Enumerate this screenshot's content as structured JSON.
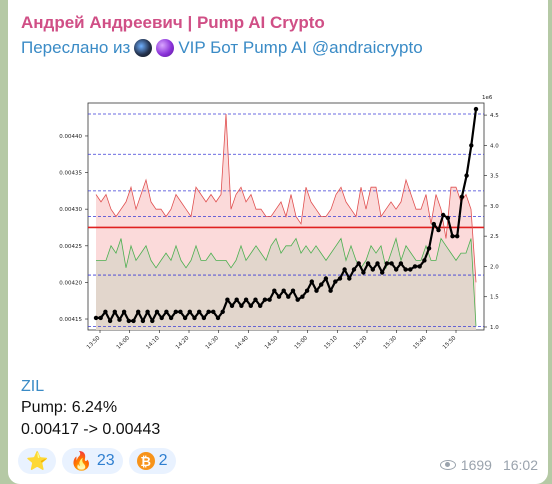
{
  "message": {
    "author": "Андрей Андреевич | Pump AI Crypto",
    "forwarded_prefix": "Переслано из",
    "forwarded_source": "VIP Бот Pump AI @andraicrypto",
    "ticker": "ZIL",
    "pump_line": "Pump: 6.24%",
    "price_line": "0.00417 -> 0.00443",
    "views": "1699",
    "time": "16:02"
  },
  "reactions": [
    {
      "icon": "star-icon",
      "glyph": "⭐",
      "count": ""
    },
    {
      "icon": "fire-icon",
      "glyph": "🔥",
      "count": "23"
    },
    {
      "icon": "bitcoin-icon",
      "glyph": "₿",
      "count": "2"
    }
  ],
  "colors": {
    "author": "#d04f86",
    "link": "#3a8bc6",
    "upper_band": "#e05050",
    "lower_band": "#4caf50",
    "price": "#000000",
    "hline": "#3b3bd6",
    "mid": "#e02020"
  },
  "chart_data": {
    "type": "line",
    "x_ticks": [
      "13:50",
      "14:00",
      "14:10",
      "14:20",
      "14:30",
      "14:40",
      "14:50",
      "15:00",
      "15:10",
      "15:20",
      "15:30",
      "15:40",
      "15:50"
    ],
    "left_ticks": [
      "0.00415",
      "0.00420",
      "0.00425",
      "0.00430",
      "0.00435",
      "0.00440"
    ],
    "left_ylim": [
      0.004135,
      0.004445
    ],
    "right_ticks": [
      "1.0",
      "1.5",
      "2.0",
      "2.5",
      "3.0",
      "3.5",
      "4.0",
      "4.5"
    ],
    "right_ylim": [
      0.95,
      4.7
    ],
    "right_offset_label": "1e6",
    "hlines_left": [
      0.00414,
      0.00421,
      0.004275,
      0.00429,
      0.004325,
      0.004375,
      0.00443
    ],
    "mid_line": 0.004275,
    "upper": [
      0.00432,
      0.00431,
      0.00432,
      0.0043,
      0.00429,
      0.0043,
      0.00431,
      0.00433,
      0.0043,
      0.00432,
      0.00434,
      0.00431,
      0.0043,
      0.0043,
      0.00429,
      0.0043,
      0.00432,
      0.00431,
      0.0043,
      0.00429,
      0.00433,
      0.00432,
      0.00431,
      0.00432,
      0.00431,
      0.00432,
      0.00443,
      0.0043,
      0.00432,
      0.00433,
      0.00431,
      0.00432,
      0.0043,
      0.0043,
      0.00429,
      0.00429,
      0.0043,
      0.00431,
      0.00429,
      0.00432,
      0.00429,
      0.00428,
      0.00433,
      0.00431,
      0.0043,
      0.00429,
      0.00429,
      0.0043,
      0.00432,
      0.00433,
      0.00431,
      0.0043,
      0.00429,
      0.00433,
      0.0043,
      0.00433,
      0.00433,
      0.00429,
      0.0043,
      0.00431,
      0.0043,
      0.00431,
      0.00434,
      0.00432,
      0.0043,
      0.0043,
      0.00432,
      0.00428,
      0.00432,
      0.0043,
      0.00426,
      0.00433,
      0.00433,
      0.00431,
      0.00432,
      0.0043,
      0.0042
    ],
    "lower": [
      0.00423,
      0.00423,
      0.00423,
      0.00425,
      0.00424,
      0.00426,
      0.00422,
      0.00425,
      0.00423,
      0.00424,
      0.00425,
      0.00423,
      0.00422,
      0.00423,
      0.00424,
      0.00423,
      0.00425,
      0.00423,
      0.00422,
      0.00423,
      0.00425,
      0.00423,
      0.00423,
      0.00424,
      0.00423,
      0.00423,
      0.00423,
      0.00422,
      0.00423,
      0.00425,
      0.00423,
      0.00424,
      0.00425,
      0.00424,
      0.00423,
      0.00425,
      0.00426,
      0.00424,
      0.00425,
      0.00425,
      0.00426,
      0.00424,
      0.00425,
      0.00424,
      0.00425,
      0.00424,
      0.00423,
      0.00424,
      0.00425,
      0.00426,
      0.00423,
      0.00425,
      0.00423,
      0.00422,
      0.00423,
      0.00425,
      0.00424,
      0.00425,
      0.00422,
      0.00424,
      0.00426,
      0.00423,
      0.00425,
      0.00424,
      0.00423,
      0.00423,
      0.00425,
      0.00423,
      0.00423,
      0.00426,
      0.00425,
      0.00424,
      0.00423,
      0.00424,
      0.00424,
      0.00426,
      0.00414
    ],
    "price": [
      1.15,
      1.15,
      1.25,
      1.1,
      1.25,
      1.12,
      1.25,
      1.1,
      1.1,
      1.25,
      1.1,
      1.25,
      1.1,
      1.25,
      1.15,
      1.25,
      1.15,
      1.25,
      1.25,
      1.15,
      1.25,
      1.15,
      1.25,
      1.15,
      1.25,
      1.25,
      1.15,
      1.25,
      1.45,
      1.35,
      1.45,
      1.35,
      1.45,
      1.35,
      1.45,
      1.35,
      1.45,
      1.45,
      1.6,
      1.5,
      1.6,
      1.5,
      1.6,
      1.45,
      1.5,
      1.6,
      1.75,
      1.6,
      1.7,
      1.8,
      1.6,
      1.75,
      1.8,
      1.95,
      1.8,
      1.95,
      2.05,
      1.9,
      2.05,
      1.95,
      2.05,
      1.9,
      2.05,
      2.05,
      1.95,
      2.05,
      1.95,
      1.95,
      2.0,
      2.0,
      2.1,
      2.3,
      2.7,
      2.6,
      2.85,
      2.8,
      2.5,
      2.5,
      3.15,
      3.5,
      4.0,
      4.6
    ],
    "price_x_from": 0.0,
    "price_x_to": 1.0
  }
}
